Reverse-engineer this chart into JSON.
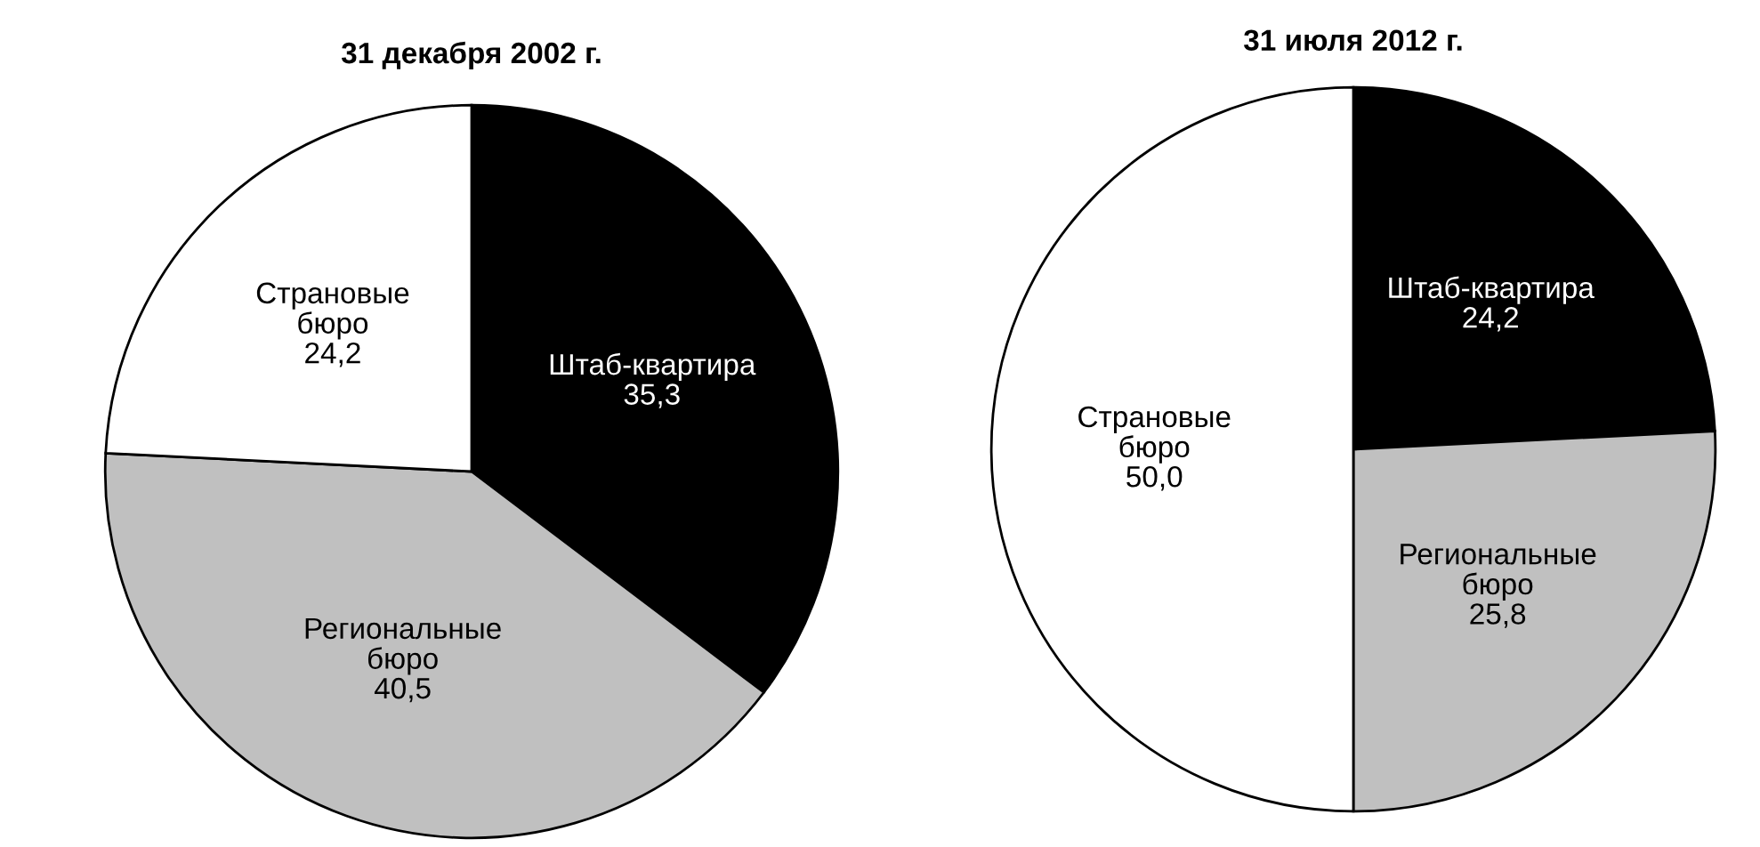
{
  "chart_data": [
    {
      "type": "pie",
      "title": "31 декабря 2002 г.",
      "categories": [
        "Штаб-квартира",
        "Региональные\nбюро",
        "Страновые\nбюро"
      ],
      "values": [
        35.3,
        40.5,
        24.2
      ],
      "colors": [
        "#000000",
        "#c0c0c0",
        "#ffffff"
      ],
      "value_labels": [
        "35,3",
        "40,5",
        "24,2"
      ]
    },
    {
      "type": "pie",
      "title": "31 июля 2012 г.",
      "categories": [
        "Штаб-квартира",
        "Региональные\nбюро",
        "Страновые\nбюро"
      ],
      "values": [
        24.2,
        25.8,
        50.0
      ],
      "colors": [
        "#000000",
        "#c0c0c0",
        "#ffffff"
      ],
      "value_labels": [
        "24,2",
        "25,8",
        "50,0"
      ]
    }
  ]
}
